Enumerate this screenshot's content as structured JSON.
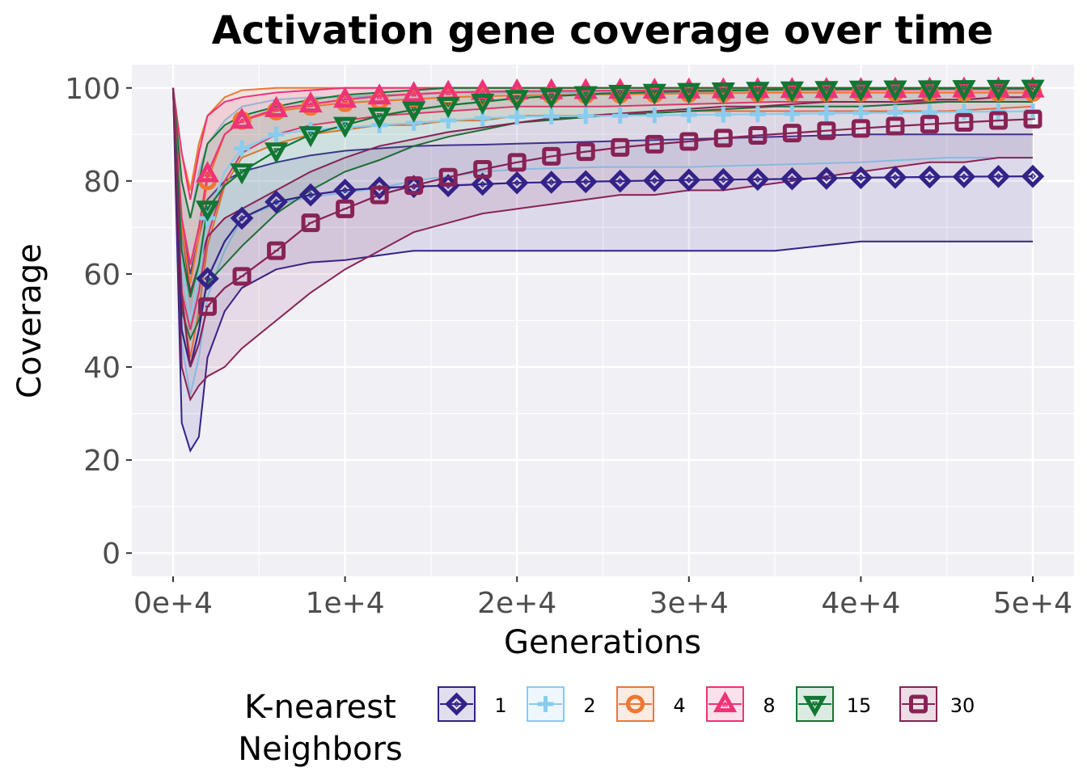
{
  "chart_data": {
    "type": "line",
    "title": "Activation gene coverage over time",
    "xlabel": "Generations",
    "ylabel": "Coverage",
    "xlim": [
      -2400,
      52400
    ],
    "ylim": [
      -5,
      105
    ],
    "x_ticks": [
      0,
      10000,
      20000,
      30000,
      40000,
      50000
    ],
    "x_tick_labels": [
      "0e+4",
      "1e+4",
      "2e+4",
      "3e+4",
      "4e+4",
      "5e+4"
    ],
    "y_ticks": [
      0,
      20,
      40,
      60,
      80,
      100
    ],
    "y_tick_labels": [
      "0",
      "20",
      "40",
      "60",
      "80",
      "100"
    ],
    "grid": true,
    "legend_position": "bottom",
    "legend_title": "K-nearest\nNeighbors",
    "series": [
      {
        "name": "1",
        "color": "#332288",
        "marker": "diamond",
        "x": [
          0,
          500,
          1000,
          1500,
          2000,
          3000,
          4000,
          6000,
          8000,
          10000,
          12000,
          14000,
          16000,
          18000,
          20000,
          25000,
          30000,
          35000,
          40000,
          45000,
          50000
        ],
        "mean": [
          100,
          48,
          40,
          48,
          59,
          67,
          72,
          75.5,
          77,
          78,
          78.5,
          78.8,
          79,
          79.3,
          79.6,
          79.9,
          80.2,
          80.4,
          80.7,
          80.9,
          81
        ],
        "upper": [
          100,
          70,
          60,
          68,
          76,
          80,
          82,
          84,
          85.5,
          86.5,
          87,
          87.5,
          87.7,
          87.8,
          88,
          88.5,
          89,
          89.5,
          90,
          90,
          90
        ],
        "lower": [
          100,
          28,
          22,
          25,
          42,
          52,
          57,
          61,
          62.5,
          63,
          64,
          65,
          65,
          65,
          65,
          65,
          65,
          65,
          67,
          67,
          67
        ]
      },
      {
        "name": "2",
        "color": "#88ccee",
        "marker": "plus",
        "x": [
          0,
          500,
          1000,
          1500,
          2000,
          3000,
          4000,
          6000,
          8000,
          10000,
          12000,
          14000,
          16000,
          18000,
          20000,
          25000,
          30000,
          35000,
          40000,
          45000,
          50000
        ],
        "mean": [
          100,
          62,
          50,
          60,
          72,
          82,
          87,
          90,
          91,
          91.5,
          92,
          92.5,
          93,
          93.5,
          93.8,
          94,
          94.2,
          94.4,
          94.6,
          94.8,
          95
        ],
        "upper": [
          100,
          80,
          72,
          82,
          88,
          93,
          96,
          97.5,
          98,
          98,
          98.5,
          98.5,
          99,
          99,
          99,
          99,
          99,
          99,
          99,
          99,
          99
        ],
        "lower": [
          100,
          45,
          34,
          42,
          55,
          65,
          72,
          75,
          76.5,
          77.5,
          78.5,
          80,
          81,
          82,
          82.5,
          83,
          83,
          83.5,
          84,
          85,
          85
        ]
      },
      {
        "name": "4",
        "color": "#ee7733",
        "marker": "circle",
        "x": [
          0,
          500,
          1000,
          1500,
          2000,
          3000,
          4000,
          6000,
          8000,
          10000,
          12000,
          14000,
          16000,
          18000,
          20000,
          25000,
          30000,
          35000,
          40000,
          45000,
          50000
        ],
        "mean": [
          100,
          70,
          58,
          68,
          80,
          90,
          93,
          95,
          96,
          96.8,
          97.2,
          97.6,
          98,
          98.2,
          98.4,
          98.6,
          98.8,
          99,
          99,
          99,
          99
        ],
        "upper": [
          100,
          86,
          78,
          88,
          94,
          98,
          99.5,
          100,
          100,
          100,
          100,
          100,
          100,
          100,
          100,
          100,
          100,
          100,
          100,
          100,
          100
        ],
        "lower": [
          100,
          55,
          42,
          52,
          66,
          79,
          85,
          88,
          90,
          91,
          92,
          92,
          93,
          93,
          94,
          94,
          95,
          95,
          95,
          95,
          96
        ]
      },
      {
        "name": "8",
        "color": "#ee3377",
        "marker": "triangle-up",
        "x": [
          0,
          500,
          1000,
          1500,
          2000,
          3000,
          4000,
          6000,
          8000,
          10000,
          12000,
          14000,
          16000,
          18000,
          20000,
          25000,
          30000,
          35000,
          40000,
          45000,
          50000
        ],
        "mean": [
          100,
          72,
          62,
          70,
          81.5,
          90,
          93,
          95.5,
          96.5,
          97.5,
          98.2,
          98.7,
          99,
          99.2,
          99.3,
          99.4,
          99.5,
          99.6,
          99.6,
          99.7,
          99.7
        ],
        "upper": [
          100,
          86,
          76,
          86,
          94,
          97,
          98,
          99,
          99.5,
          100,
          100,
          100,
          100,
          100,
          100,
          100,
          100,
          100,
          100,
          100,
          100
        ],
        "lower": [
          100,
          56,
          48,
          56,
          68,
          80,
          86,
          90,
          92,
          93,
          94,
          94.5,
          95,
          95.5,
          96,
          96,
          96.5,
          97,
          97,
          97,
          97
        ]
      },
      {
        "name": "15",
        "color": "#117733",
        "marker": "triangle-down",
        "x": [
          0,
          500,
          1000,
          1500,
          2000,
          3000,
          4000,
          6000,
          8000,
          10000,
          12000,
          14000,
          16000,
          18000,
          20000,
          25000,
          30000,
          35000,
          40000,
          45000,
          50000
        ],
        "mean": [
          100,
          65,
          55,
          62,
          74,
          79,
          82,
          86.5,
          90,
          92,
          94,
          95.3,
          96.3,
          97,
          97.8,
          98.8,
          99.3,
          99.6,
          99.8,
          99.9,
          100
        ],
        "upper": [
          100,
          80,
          72,
          80,
          88,
          92,
          94,
          96,
          97.5,
          98.5,
          99,
          99.5,
          100,
          100,
          100,
          100,
          100,
          100,
          100,
          100,
          100
        ],
        "lower": [
          100,
          52,
          46,
          50,
          58,
          62,
          66,
          73,
          78,
          82,
          84.5,
          87.5,
          89.5,
          91,
          92.5,
          94,
          95,
          96,
          96,
          97,
          97
        ]
      },
      {
        "name": "30",
        "color": "#882255",
        "marker": "square",
        "x": [
          0,
          500,
          1000,
          1500,
          2000,
          3000,
          4000,
          6000,
          8000,
          10000,
          12000,
          14000,
          16000,
          18000,
          20000,
          22000,
          24000,
          26000,
          28000,
          30000,
          32000,
          34000,
          36000,
          38000,
          40000,
          42000,
          44000,
          46000,
          48000,
          50000
        ],
        "mean": [
          100,
          55,
          40,
          45,
          53,
          57,
          59.5,
          65,
          71,
          74,
          77,
          79,
          80.8,
          82.5,
          84,
          85.3,
          86.3,
          87.2,
          87.9,
          88.5,
          89.2,
          89.8,
          90.3,
          90.8,
          91.3,
          91.8,
          92.2,
          92.6,
          93,
          93.3
        ],
        "upper": [
          100,
          70,
          56,
          62,
          68,
          72,
          74,
          78,
          82,
          85,
          87.5,
          89,
          90.5,
          91.5,
          92.5,
          93.5,
          94,
          94.5,
          95,
          95.5,
          96,
          96,
          96.5,
          97,
          97,
          97,
          97.5,
          97.5,
          98,
          98
        ],
        "lower": [
          100,
          40,
          33,
          36,
          38,
          40,
          44,
          50,
          56,
          61,
          65,
          69,
          71,
          73,
          74,
          75,
          76,
          77,
          77,
          78,
          78,
          79,
          80,
          81,
          82,
          83,
          84,
          84,
          85,
          85
        ]
      }
    ]
  }
}
